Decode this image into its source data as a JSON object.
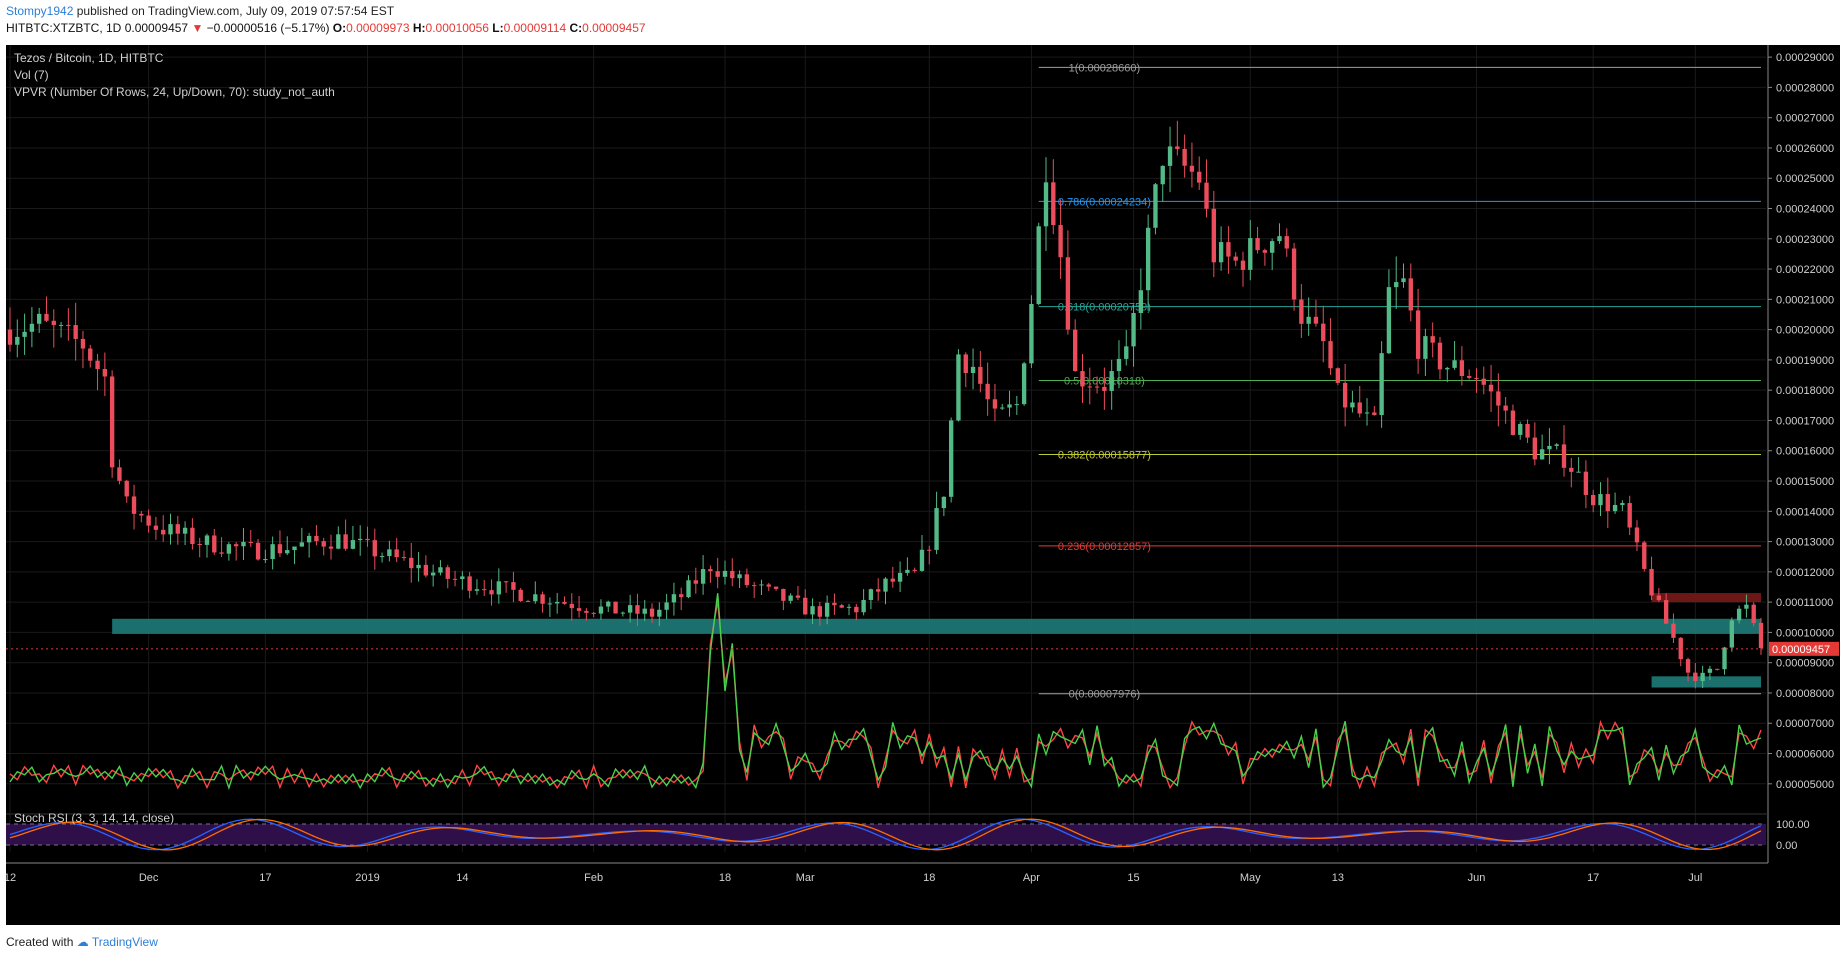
{
  "header": {
    "author": "Stompy1942",
    "published_text": "published on TradingView.com, July 09, 2019 07:57:54 EST",
    "symbol": "HITBTC:XTZBTC, 1D",
    "last": "0.00009457",
    "change": "−0.00000516 (−5.17%)",
    "o_label": "O:",
    "o_value": "0.00009973",
    "h_label": "H:",
    "h_value": "0.00010056",
    "l_label": "L:",
    "l_value": "0.00009114",
    "c_label": "C:",
    "c_value": "0.00009457"
  },
  "legend": {
    "title": "Tezos / Bitcoin, 1D, HITBTC",
    "vol": "Vol (7)",
    "vpvr": "VPVR (Number Of Rows, 24, Up/Down, 70): study_not_auth",
    "stoch": "Stoch RSI (3, 3, 14, 14, close)"
  },
  "footer": {
    "created_with": "Created with",
    "brand": "TradingView"
  },
  "colors": {
    "background": "#000000",
    "up": "#53b987",
    "down": "#eb4d5c",
    "teal_zone": "#1e7b78",
    "red_zone": "#7a1a1a",
    "price_marker": "#e53935",
    "line_red": "#ff4444",
    "line_green": "#49d14b",
    "stoch_bg": "#2e0f4a",
    "stoch_k": "#2962ff",
    "stoch_d": "#ff6d00"
  },
  "chart_data": {
    "type": "candlestick",
    "title": "Tezos / Bitcoin, 1D, HITBTC",
    "y_ticks": [
      "0.00029000",
      "0.00028000",
      "0.00027000",
      "0.00026000",
      "0.00025000",
      "0.00024000",
      "0.00023000",
      "0.00022000",
      "0.00021000",
      "0.00020000",
      "0.00019000",
      "0.00018000",
      "0.00017000",
      "0.00016000",
      "0.00015000",
      "0.00014000",
      "0.00013000",
      "0.00012000",
      "0.00011000",
      "0.00010000",
      "0.00009000",
      "0.00008000",
      "0.00007000",
      "0.00006000",
      "0.00005000"
    ],
    "ylim": [
      4.3e-05,
      0.000294
    ],
    "current_price": {
      "label": "0.00009457",
      "value": 9.457e-05
    },
    "x_ticks": [
      {
        "label": "12",
        "day": 0
      },
      {
        "label": "Dec",
        "day": 19
      },
      {
        "label": "17",
        "day": 35
      },
      {
        "label": "2019",
        "day": 49
      },
      {
        "label": "14",
        "day": 62
      },
      {
        "label": "Feb",
        "day": 80
      },
      {
        "label": "18",
        "day": 98
      },
      {
        "label": "Mar",
        "day": 109
      },
      {
        "label": "18",
        "day": 126
      },
      {
        "label": "Apr",
        "day": 140
      },
      {
        "label": "15",
        "day": 154
      },
      {
        "label": "May",
        "day": 170
      },
      {
        "label": "13",
        "day": 182
      },
      {
        "label": "Jun",
        "day": 201
      },
      {
        "label": "17",
        "day": 217
      },
      {
        "label": "Jul",
        "day": 231
      }
    ],
    "fib_levels": [
      {
        "label": "1(0.00028660)",
        "value": 0.0002866,
        "color": "#9e9e9e"
      },
      {
        "label": "0.786(0.00024234)",
        "value": 0.00024234,
        "color": "#2196f3"
      },
      {
        "label": "0.618(0.00020759)",
        "value": 0.00020759,
        "color": "#26a69a"
      },
      {
        "label": "0.5(0.00018318)",
        "value": 0.00018318,
        "color": "#4caf50"
      },
      {
        "label": "0.382(0.00015877)",
        "value": 0.00015877,
        "color": "#c0ca33"
      },
      {
        "label": "0.236(0.00012857)",
        "value": 0.00012857,
        "color": "#e53935"
      },
      {
        "label": "0(0.00007976)",
        "value": 7.976e-05,
        "color": "#9e9e9e"
      }
    ],
    "zones": [
      {
        "name": "teal-support-zone",
        "from_day": 14,
        "to_day": 240,
        "low": 9.95e-05,
        "high": 0.0001045
      },
      {
        "name": "teal-low-zone",
        "from_day": 225,
        "to_day": 240,
        "low": 8.18e-05,
        "high": 8.55e-05
      },
      {
        "name": "red-resistance-zone",
        "from_day": 225,
        "to_day": 240,
        "low": 0.00011,
        "high": 0.000113
      }
    ],
    "close_keypoints": [
      [
        0,
        0.0002
      ],
      [
        4,
        0.000202
      ],
      [
        10,
        0.000195
      ],
      [
        13,
        0.000184
      ],
      [
        14,
        0.000158
      ],
      [
        16,
        0.000142
      ],
      [
        20,
        0.000135
      ],
      [
        26,
        0.00013
      ],
      [
        33,
        0.000127
      ],
      [
        38,
        0.000128
      ],
      [
        45,
        0.000131
      ],
      [
        52,
        0.000125
      ],
      [
        60,
        0.000118
      ],
      [
        70,
        0.000113
      ],
      [
        80,
        0.000108
      ],
      [
        88,
        0.000106
      ],
      [
        92,
        0.000112
      ],
      [
        96,
        0.000122
      ],
      [
        100,
        0.000117
      ],
      [
        110,
        0.000107
      ],
      [
        116,
        0.000108
      ],
      [
        120,
        0.000116
      ],
      [
        124,
        0.000119
      ],
      [
        126,
        0.00013
      ],
      [
        128,
        0.000147
      ],
      [
        130,
        0.000192
      ],
      [
        132,
        0.000188
      ],
      [
        135,
        0.00017
      ],
      [
        138,
        0.000175
      ],
      [
        140,
        0.00021
      ],
      [
        142,
        0.000255
      ],
      [
        144,
        0.000225
      ],
      [
        146,
        0.000185
      ],
      [
        150,
        0.000182
      ],
      [
        153,
        0.00019
      ],
      [
        156,
        0.00023
      ],
      [
        158,
        0.000258
      ],
      [
        160,
        0.000255
      ],
      [
        163,
        0.00025
      ],
      [
        165,
        0.000225
      ],
      [
        168,
        0.000222
      ],
      [
        171,
        0.000228
      ],
      [
        174,
        0.000232
      ],
      [
        177,
        0.000205
      ],
      [
        180,
        0.000195
      ],
      [
        182,
        0.000178
      ],
      [
        185,
        0.000172
      ],
      [
        187,
        0.000168
      ],
      [
        189,
        0.000212
      ],
      [
        191,
        0.000215
      ],
      [
        193,
        0.000195
      ],
      [
        197,
        0.000188
      ],
      [
        201,
        0.000185
      ],
      [
        205,
        0.000172
      ],
      [
        209,
        0.00016
      ],
      [
        213,
        0.000158
      ],
      [
        217,
        0.000145
      ],
      [
        221,
        0.00014
      ],
      [
        224,
        0.00012
      ],
      [
        226,
        0.000108
      ],
      [
        228,
        9.8e-05
      ],
      [
        230,
        8.7e-05
      ],
      [
        232,
        8.5e-05
      ],
      [
        234,
        8.8e-05
      ],
      [
        236,
        0.000106
      ],
      [
        238,
        0.000108
      ],
      [
        240,
        9.46e-05
      ]
    ],
    "days": 241
  }
}
